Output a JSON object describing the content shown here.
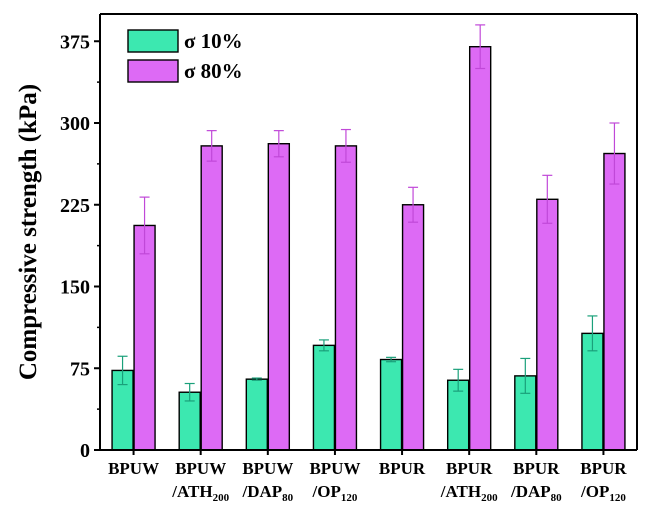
{
  "chart_data": {
    "type": "bar",
    "ylabel": "Compressive strength (kPa)",
    "xlabel": "",
    "ylim": [
      0,
      400
    ],
    "yticks": [
      0,
      75,
      150,
      225,
      300,
      375
    ],
    "ytick_labels": [
      "0",
      "75",
      "150",
      "225",
      "300",
      "375"
    ],
    "categories": [
      {
        "line1": "BPUW",
        "line2": "",
        "sub": ""
      },
      {
        "line1": "BPUW",
        "line2": "/ATH",
        "sub": "200"
      },
      {
        "line1": "BPUW",
        "line2": "/DAP",
        "sub": "80"
      },
      {
        "line1": "BPUW",
        "line2": "/OP",
        "sub": "120"
      },
      {
        "line1": "BPUR",
        "line2": "",
        "sub": ""
      },
      {
        "line1": "BPUR",
        "line2": "/ATH",
        "sub": "200"
      },
      {
        "line1": "BPUR",
        "line2": "/DAP",
        "sub": "80"
      },
      {
        "line1": "BPUR",
        "line2": "/OP",
        "sub": "120"
      }
    ],
    "series": [
      {
        "name": "σ 10%",
        "color": "#3ce8b0",
        "values": [
          73,
          53,
          65,
          96,
          83,
          64,
          68,
          107
        ],
        "errors": [
          13,
          8,
          1,
          5,
          2,
          10,
          16,
          16
        ]
      },
      {
        "name": "σ 80%",
        "color": "#dd6af5",
        "values": [
          206,
          279,
          281,
          279,
          225,
          370,
          230,
          272
        ],
        "errors": [
          26,
          14,
          12,
          15,
          16,
          20,
          22,
          28
        ]
      }
    ],
    "legend_position": "top-left",
    "grid": false
  }
}
